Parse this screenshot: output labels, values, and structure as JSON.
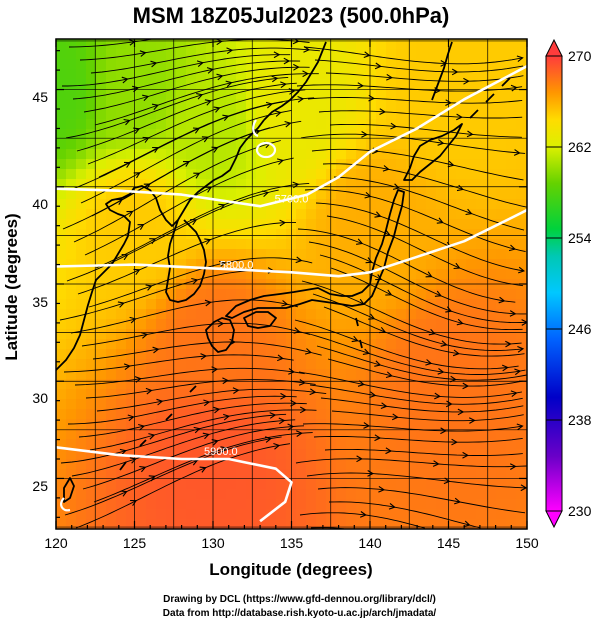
{
  "figure": {
    "title": "MSM 18Z05Jul2023 (500.0hPa)",
    "xlabel": "Longitude (degrees)",
    "ylabel": "Latitude  (degrees)",
    "xticks": [
      "120",
      "125",
      "130",
      "135",
      "140",
      "145",
      "150"
    ],
    "yticks": [
      "25",
      "30",
      "35",
      "40",
      "45"
    ],
    "xlim": [
      120,
      150
    ],
    "ylim": [
      22.4,
      47.6
    ],
    "colorbar": {
      "ticks": [
        "270",
        "262",
        "254",
        "246",
        "238",
        "230"
      ],
      "range": [
        230,
        270
      ]
    },
    "contour_labels": [
      "5700.0",
      "5800.0",
      "5900.0"
    ],
    "credit_line1": "Drawing by DCL (https://www.gfd-dennou.org/library/dcl/)",
    "credit_line2": "Data from http://database.rish.kyoto-u.ac.jp/arch/jmadata/"
  },
  "chart_data": {
    "type": "heatmap",
    "variable": "temperature (K) at 500.0hPa with streamlines and geopotential height contours",
    "xlim": [
      120,
      150
    ],
    "ylim": [
      22.4,
      47.6
    ],
    "colorbar_range": [
      230,
      270
    ],
    "temperature_field": [
      {
        "lon": 120,
        "lat": 45,
        "value": 258
      },
      {
        "lon": 125,
        "lat": 45,
        "value": 260
      },
      {
        "lon": 130,
        "lat": 43,
        "value": 261
      },
      {
        "lon": 135,
        "lat": 44,
        "value": 263
      },
      {
        "lon": 145,
        "lat": 45,
        "value": 265
      },
      {
        "lon": 125,
        "lat": 38,
        "value": 265
      },
      {
        "lon": 140,
        "lat": 38,
        "value": 266
      },
      {
        "lon": 130,
        "lat": 32,
        "value": 268
      },
      {
        "lon": 145,
        "lat": 30,
        "value": 268
      },
      {
        "lon": 130,
        "lat": 26,
        "value": 269
      }
    ],
    "height_contours": [
      {
        "label": "5700.0",
        "points": [
          [
            120,
            39.9
          ],
          [
            124,
            39.8
          ],
          [
            128,
            39.6
          ],
          [
            133,
            39.0
          ],
          [
            136,
            39.6
          ],
          [
            138,
            40.5
          ],
          [
            140,
            41.8
          ],
          [
            143,
            43.0
          ],
          [
            146,
            44.5
          ],
          [
            150,
            46.2
          ]
        ]
      },
      {
        "label": "5800.0",
        "points": [
          [
            120,
            35.9
          ],
          [
            125,
            36.0
          ],
          [
            130,
            35.8
          ],
          [
            135,
            35.6
          ],
          [
            138,
            35.4
          ],
          [
            140,
            35.6
          ],
          [
            143,
            36.4
          ],
          [
            146,
            37.2
          ],
          [
            148,
            38.0
          ],
          [
            150,
            38.8
          ]
        ]
      },
      {
        "label": "5900.0",
        "points": [
          [
            120,
            26.6
          ],
          [
            124,
            26.2
          ],
          [
            128,
            26.0
          ],
          [
            131,
            26.0
          ],
          [
            134,
            25.5
          ],
          [
            135,
            24.8
          ],
          [
            134.6,
            23.8
          ],
          [
            133,
            22.8
          ]
        ]
      }
    ]
  }
}
